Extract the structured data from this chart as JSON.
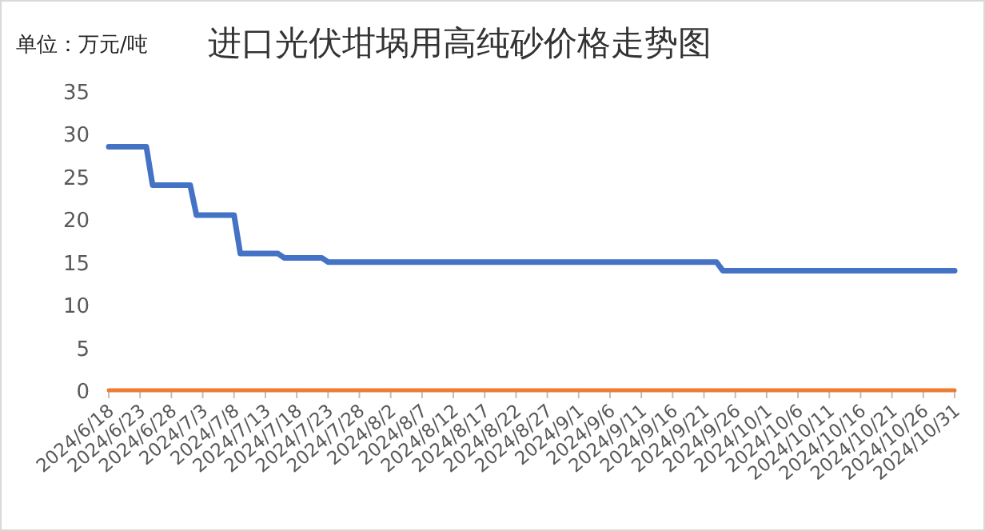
{
  "chart_data": {
    "type": "step",
    "title": "进口光伏坩埚用高纯砂价格走势图",
    "annotations": [
      "单位：万元/吨"
    ],
    "series": [
      {
        "color": "#4472c4",
        "x": [
          "2024-06-18",
          "2024-06-24",
          "2024-06-25",
          "2024-07-01",
          "2024-07-02",
          "2024-07-08",
          "2024-07-09",
          "2024-07-15",
          "2024-07-16",
          "2024-07-22",
          "2024-07-23",
          "2024-09-23",
          "2024-09-24",
          "2024-10-31"
        ],
        "values": [
          28.5,
          28.5,
          24,
          24,
          20.5,
          20.5,
          16,
          16,
          15.5,
          15.5,
          15,
          15,
          14,
          14
        ]
      },
      {
        "type": "line",
        "color": "#ed7d31",
        "x": [
          "2024-06-18",
          "2024-10-31"
        ],
        "values": [
          0,
          0
        ]
      }
    ],
    "xlim": [
      "2024-06-18",
      "2024-10-31"
    ],
    "xticks": [
      {
        "value": "2024-06-18",
        "label": "2024/6/18"
      },
      {
        "value": "2024-06-23",
        "label": "2024/6/23"
      },
      {
        "value": "2024-06-28",
        "label": "2024/6/28"
      },
      {
        "value": "2024-07-03",
        "label": "2024/7/3"
      },
      {
        "value": "2024-07-08",
        "label": "2024/7/8"
      },
      {
        "value": "2024-07-13",
        "label": "2024/7/13"
      },
      {
        "value": "2024-07-18",
        "label": "2024/7/18"
      },
      {
        "value": "2024-07-23",
        "label": "2024/7/23"
      },
      {
        "value": "2024-07-28",
        "label": "2024/7/28"
      },
      {
        "value": "2024-08-02",
        "label": "2024/8/2"
      },
      {
        "value": "2024-08-07",
        "label": "2024/8/7"
      },
      {
        "value": "2024-08-12",
        "label": "2024/8/12"
      },
      {
        "value": "2024-08-17",
        "label": "2024/8/17"
      },
      {
        "value": "2024-08-22",
        "label": "2024/8/22"
      },
      {
        "value": "2024-08-27",
        "label": "2024/8/27"
      },
      {
        "value": "2024-09-01",
        "label": "2024/9/1"
      },
      {
        "value": "2024-09-06",
        "label": "2024/9/6"
      },
      {
        "value": "2024-09-11",
        "label": "2024/9/11"
      },
      {
        "value": "2024-09-16",
        "label": "2024/9/16"
      },
      {
        "value": "2024-09-21",
        "label": "2024/9/21"
      },
      {
        "value": "2024-09-26",
        "label": "2024/9/26"
      },
      {
        "value": "2024-10-01",
        "label": "2024/10/1"
      },
      {
        "value": "2024-10-06",
        "label": "2024/10/6"
      },
      {
        "value": "2024-10-11",
        "label": "2024/10/11"
      },
      {
        "value": "2024-10-16",
        "label": "2024/10/16"
      },
      {
        "value": "2024-10-21",
        "label": "2024/10/21"
      },
      {
        "value": "2024-10-26",
        "label": "2024/10/26"
      },
      {
        "value": "2024-10-31",
        "label": "2024/10/31"
      }
    ],
    "ylim": [
      0,
      35
    ],
    "yticks": [
      0,
      5,
      10,
      15,
      20,
      25,
      30,
      35
    ],
    "marker": "none",
    "line_style": "solid"
  }
}
